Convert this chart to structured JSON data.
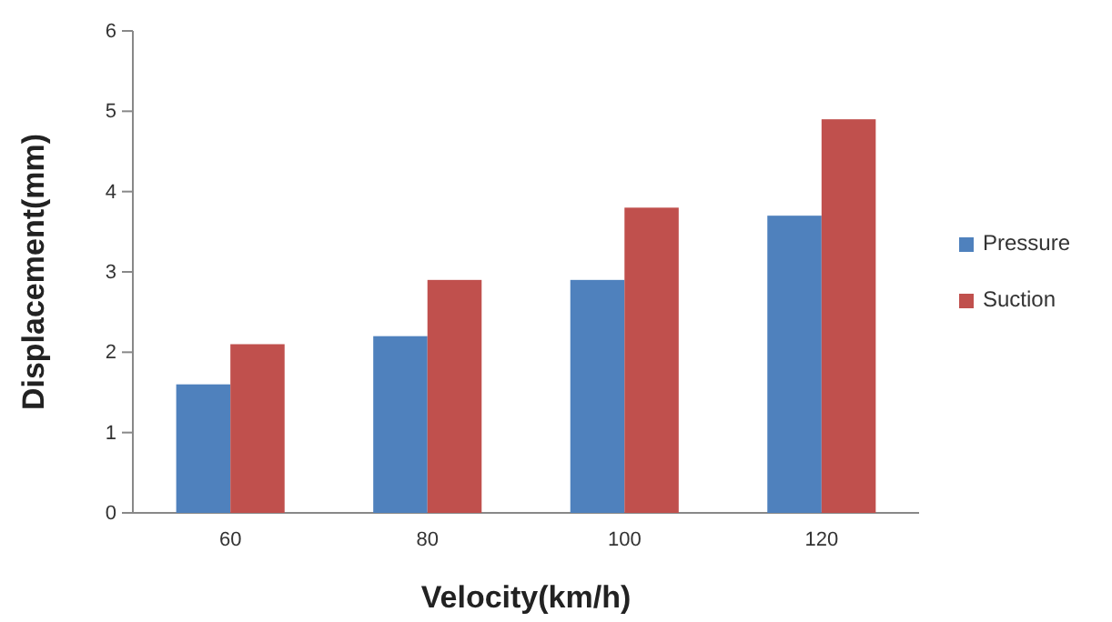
{
  "chart_data": {
    "type": "bar",
    "xlabel": "Velocity(km/h)",
    "ylabel": "Displacement(mm)",
    "categories": [
      "60",
      "80",
      "100",
      "120"
    ],
    "series": [
      {
        "name": "Pressure",
        "color": "#4f81bd",
        "values": [
          1.6,
          2.2,
          2.9,
          3.7
        ]
      },
      {
        "name": "Suction",
        "color": "#c0504d",
        "values": [
          2.1,
          2.9,
          3.8,
          4.9
        ]
      }
    ],
    "ylim": [
      0,
      6
    ],
    "yticks": [
      0,
      1,
      2,
      3,
      4,
      5,
      6
    ],
    "legend": "right"
  }
}
